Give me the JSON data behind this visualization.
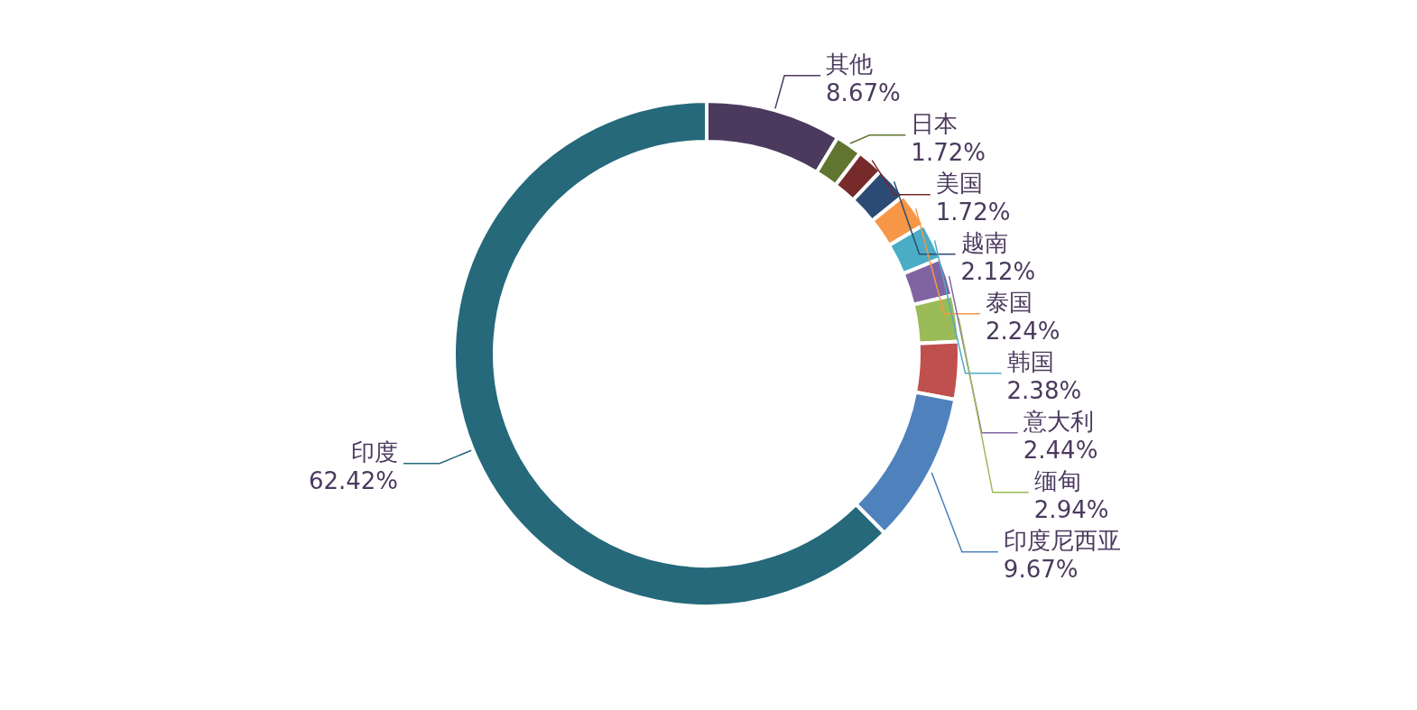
{
  "chart_data": {
    "type": "donut",
    "categories": [
      "其他",
      "日本",
      "美国",
      "越南",
      "泰国",
      "韩国",
      "意大利",
      "缅甸",
      null,
      "印度尼西亚",
      "印度"
    ],
    "values": [
      8.67,
      1.72,
      1.72,
      2.12,
      2.24,
      2.38,
      2.44,
      2.94,
      3.68,
      9.67,
      62.42
    ],
    "value_labels": [
      "8.67%",
      "1.72%",
      "1.72%",
      "2.12%",
      "2.24%",
      "2.38%",
      "2.44%",
      "2.94%",
      null,
      "9.67%",
      "62.42%"
    ],
    "colors": [
      "#4b3a5e",
      "#5f7530",
      "#772a2a",
      "#2c4b74",
      "#f79646",
      "#4bacc6",
      "#8064a2",
      "#9bbb59",
      "#c0504d",
      "#4f81bd",
      "#25697b"
    ]
  }
}
